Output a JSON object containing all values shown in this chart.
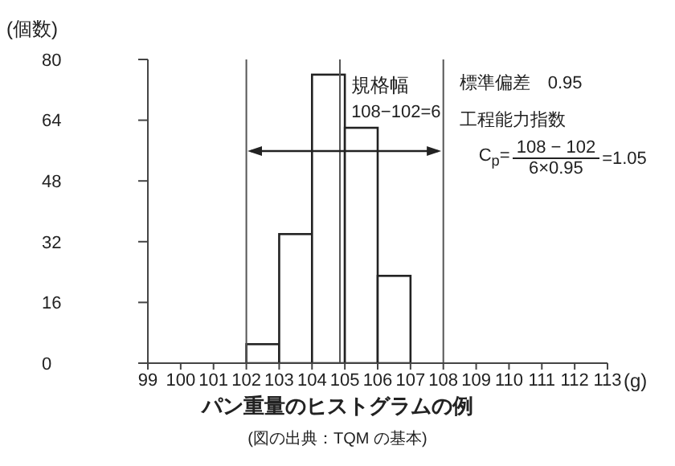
{
  "chart_data": {
    "type": "histogram",
    "title": "パン重量のヒストグラムの例",
    "subtitle": "(図の出典：TQM の基本)",
    "xlabel": "(g)",
    "ylabel": "(個数)",
    "bins": [
      102,
      103,
      104,
      105,
      106,
      107
    ],
    "values": [
      5,
      34,
      76,
      62,
      23
    ],
    "color": "#ffffff",
    "xlim": [
      99,
      113
    ],
    "xticks": [
      99,
      100,
      101,
      102,
      103,
      104,
      105,
      106,
      107,
      108,
      109,
      110,
      111,
      112,
      113
    ],
    "ylim": [
      0,
      80
    ],
    "yticks": [
      0,
      16,
      32,
      48,
      64,
      80
    ],
    "ref_lines": [
      {
        "axis": "x",
        "value": 102,
        "color": "#555555"
      },
      {
        "axis": "x",
        "value": 108,
        "color": "#555555"
      },
      {
        "axis": "x",
        "value": 104.85,
        "color": "#555555"
      }
    ],
    "annotations": [
      "規格幅",
      "108−102=6",
      "標準偏差　0.95",
      "工程能力指数",
      "C$_{p}$=",
      "108 − 102",
      "6×0.95",
      "=1.05"
    ]
  }
}
